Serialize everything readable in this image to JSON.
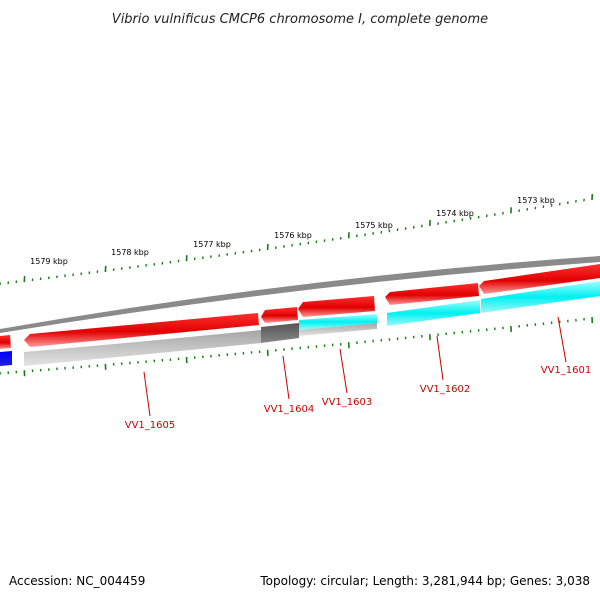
{
  "header": {
    "title": "Vibrio vulnificus CMCP6 chromosome I, complete genome"
  },
  "scale_labels": [
    "1579 kbp",
    "1578 kbp",
    "1577 kbp",
    "1576 kbp",
    "1575 kbp",
    "1574 kbp",
    "1573 kbp"
  ],
  "gene_labels": [
    "VV1_1605",
    "VV1_1604",
    "VV1_1603",
    "VV1_1602",
    "VV1_1601"
  ],
  "footer": {
    "accession": "Accession: NC_004459",
    "stats": "Topology: circular; Length: 3,281,944 bp; Genes: 3,038"
  },
  "colors": {
    "gene_red": "#ff0000",
    "gene_cyan": "#00ffff",
    "gene_blue": "#0000ff",
    "backbone_gray": "#8a8a8a",
    "feature_gray": "#bdbdbd",
    "feature_dark_gray": "#666666",
    "tick_green": "#1a7a1a",
    "label_red": "#cc0000"
  }
}
